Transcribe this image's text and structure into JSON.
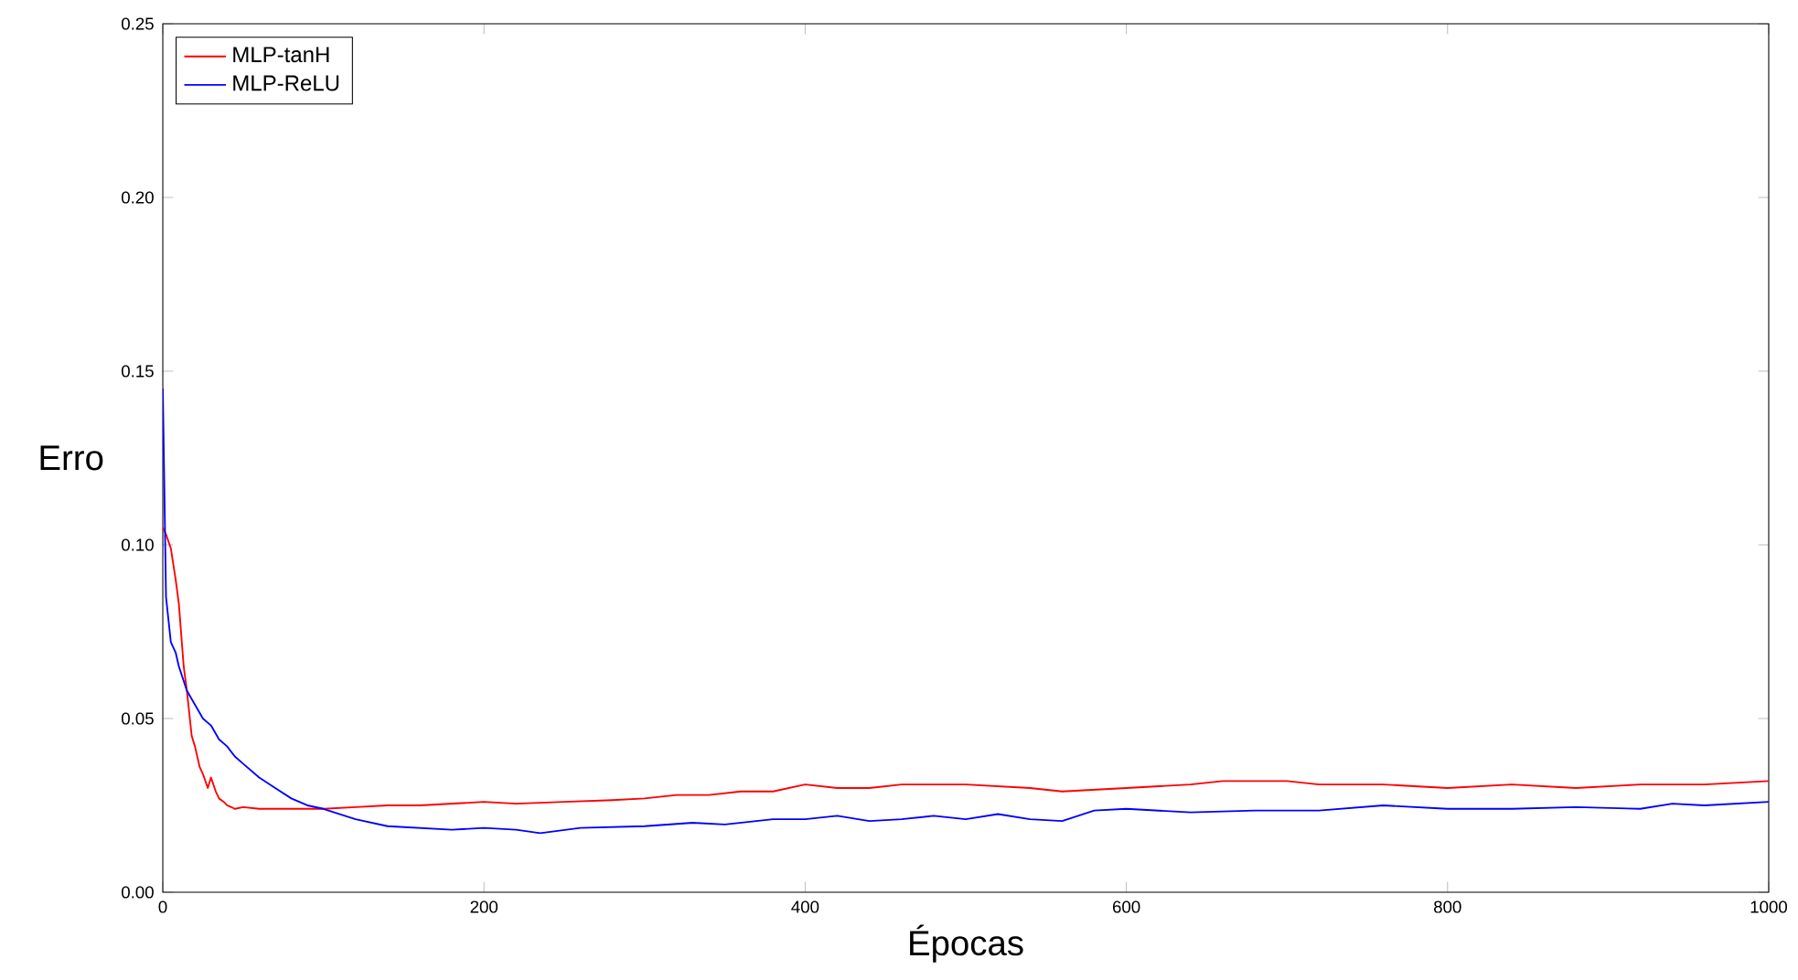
{
  "chart_data": {
    "type": "line",
    "xlabel": "Épocas",
    "ylabel": "Erro",
    "xlim": [
      0,
      1000
    ],
    "ylim": [
      0,
      0.25
    ],
    "xticks": [
      0,
      200,
      400,
      600,
      800,
      1000
    ],
    "yticks": [
      {
        "value": 0,
        "label": "0.00"
      },
      {
        "value": 0.05,
        "label": "0.05"
      },
      {
        "value": 0.1,
        "label": "0.10"
      },
      {
        "value": 0.15,
        "label": "0.15"
      },
      {
        "value": 0.2,
        "label": "0.20"
      },
      {
        "value": 0.25,
        "label": "0.25"
      }
    ],
    "grid": false,
    "legend": "top left",
    "marker": "none",
    "line_style": "solid",
    "series": [
      {
        "name": "MLP-tanH",
        "color": "#ff0000",
        "x": [
          0,
          2,
          5,
          8,
          10,
          13,
          15,
          18,
          20,
          23,
          25,
          28,
          30,
          33,
          35,
          38,
          40,
          45,
          50,
          60,
          80,
          100,
          120,
          140,
          160,
          180,
          200,
          220,
          250,
          280,
          300,
          320,
          340,
          360,
          380,
          400,
          420,
          440,
          460,
          480,
          500,
          540,
          560,
          600,
          640,
          660,
          700,
          720,
          760,
          800,
          840,
          880,
          920,
          960,
          1000
        ],
        "values": [
          0.105,
          0.103,
          0.099,
          0.09,
          0.083,
          0.065,
          0.058,
          0.045,
          0.042,
          0.036,
          0.034,
          0.03,
          0.033,
          0.029,
          0.027,
          0.026,
          0.025,
          0.024,
          0.0245,
          0.024,
          0.024,
          0.024,
          0.0245,
          0.025,
          0.025,
          0.0255,
          0.026,
          0.0255,
          0.026,
          0.0265,
          0.027,
          0.028,
          0.028,
          0.029,
          0.029,
          0.031,
          0.03,
          0.03,
          0.031,
          0.031,
          0.031,
          0.03,
          0.029,
          0.03,
          0.031,
          0.032,
          0.032,
          0.031,
          0.031,
          0.03,
          0.031,
          0.03,
          0.031,
          0.031,
          0.032
        ]
      },
      {
        "name": "MLP-ReLU",
        "color": "#0000ff",
        "x": [
          0,
          2,
          5,
          8,
          10,
          15,
          20,
          25,
          30,
          35,
          40,
          45,
          50,
          60,
          70,
          80,
          90,
          100,
          120,
          140,
          160,
          180,
          200,
          220,
          235,
          260,
          300,
          330,
          350,
          380,
          400,
          420,
          440,
          460,
          480,
          500,
          520,
          540,
          560,
          570,
          580,
          600,
          640,
          680,
          720,
          760,
          800,
          840,
          880,
          920,
          940,
          960,
          1000
        ],
        "values": [
          0.145,
          0.085,
          0.072,
          0.069,
          0.065,
          0.058,
          0.054,
          0.05,
          0.048,
          0.044,
          0.042,
          0.039,
          0.037,
          0.033,
          0.03,
          0.027,
          0.025,
          0.024,
          0.021,
          0.019,
          0.0185,
          0.018,
          0.0185,
          0.018,
          0.017,
          0.0185,
          0.019,
          0.02,
          0.0195,
          0.021,
          0.021,
          0.022,
          0.0205,
          0.021,
          0.022,
          0.021,
          0.0225,
          0.021,
          0.0205,
          0.022,
          0.0235,
          0.024,
          0.023,
          0.0235,
          0.0235,
          0.025,
          0.024,
          0.024,
          0.0245,
          0.024,
          0.0255,
          0.025,
          0.026
        ]
      }
    ]
  }
}
